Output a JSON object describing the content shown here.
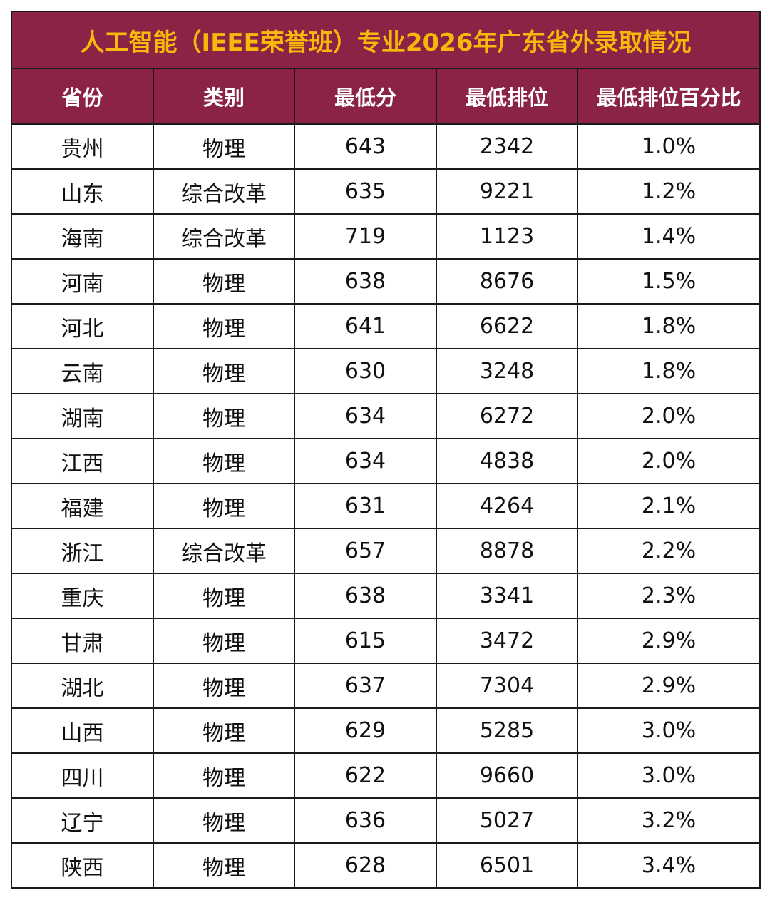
{
  "table": {
    "title": "人工智能（IEEE荣誉班）专业2026年广东省外录取情况",
    "columns": [
      "省份",
      "类别",
      "最低分",
      "最低排位",
      "最低排位百分比"
    ],
    "rows": [
      [
        "贵州",
        "物理",
        "643",
        "2342",
        "1.0%"
      ],
      [
        "山东",
        "综合改革",
        "635",
        "9221",
        "1.2%"
      ],
      [
        "海南",
        "综合改革",
        "719",
        "1123",
        "1.4%"
      ],
      [
        "河南",
        "物理",
        "638",
        "8676",
        "1.5%"
      ],
      [
        "河北",
        "物理",
        "641",
        "6622",
        "1.8%"
      ],
      [
        "云南",
        "物理",
        "630",
        "3248",
        "1.8%"
      ],
      [
        "湖南",
        "物理",
        "634",
        "6272",
        "2.0%"
      ],
      [
        "江西",
        "物理",
        "634",
        "4838",
        "2.0%"
      ],
      [
        "福建",
        "物理",
        "631",
        "4264",
        "2.1%"
      ],
      [
        "浙江",
        "综合改革",
        "657",
        "8878",
        "2.2%"
      ],
      [
        "重庆",
        "物理",
        "638",
        "3341",
        "2.3%"
      ],
      [
        "甘肃",
        "物理",
        "615",
        "3472",
        "2.9%"
      ],
      [
        "湖北",
        "物理",
        "637",
        "7304",
        "2.9%"
      ],
      [
        "山西",
        "物理",
        "629",
        "5285",
        "3.0%"
      ],
      [
        "四川",
        "物理",
        "622",
        "9660",
        "3.0%"
      ],
      [
        "辽宁",
        "物理",
        "636",
        "5027",
        "3.2%"
      ],
      [
        "陕西",
        "物理",
        "628",
        "6501",
        "3.4%"
      ]
    ]
  }
}
